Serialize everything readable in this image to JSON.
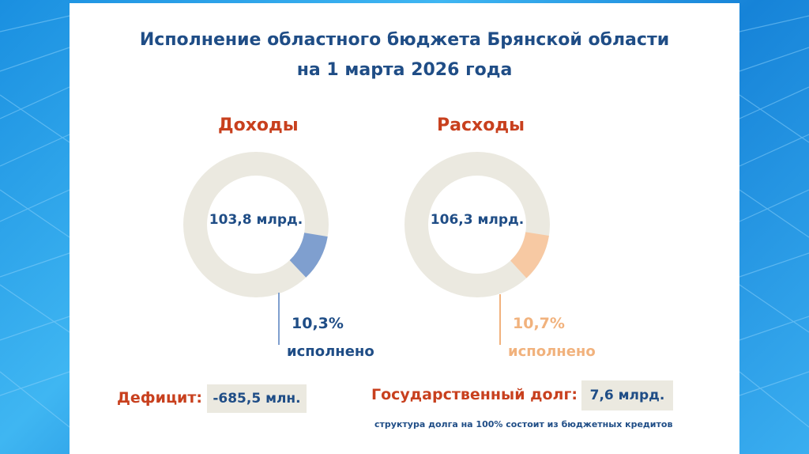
{
  "title": {
    "line1": "Исполнение областного бюджета Брянской области",
    "line2": "на 1 марта 2026 года"
  },
  "colors": {
    "ring": "#ebe9e0",
    "revenue_accent": "#7f9fcf",
    "expense_accent": "#f7c9a3",
    "revenue_text": "#1f4d86",
    "expense_text": "#f1b27d",
    "heading_red": "#c8401e"
  },
  "chart_data": [
    {
      "type": "pie",
      "title": "Доходы",
      "center_label": "103,8 млрд.",
      "values": [
        10.3,
        89.7
      ],
      "executed_percent_label": "10,3%",
      "executed_label": "исполнено"
    },
    {
      "type": "pie",
      "title": "Расходы",
      "center_label": "106,3 млрд.",
      "values": [
        10.7,
        89.3
      ],
      "executed_percent_label": "10,7%",
      "executed_label": "исполнено"
    }
  ],
  "deficit": {
    "label": "Дефицит:",
    "value": "-685,5 млн."
  },
  "debt": {
    "label": "Государственный долг:",
    "value": "7,6 млрд.",
    "note": "структура долга на 100% состоит из бюджетных кредитов"
  }
}
